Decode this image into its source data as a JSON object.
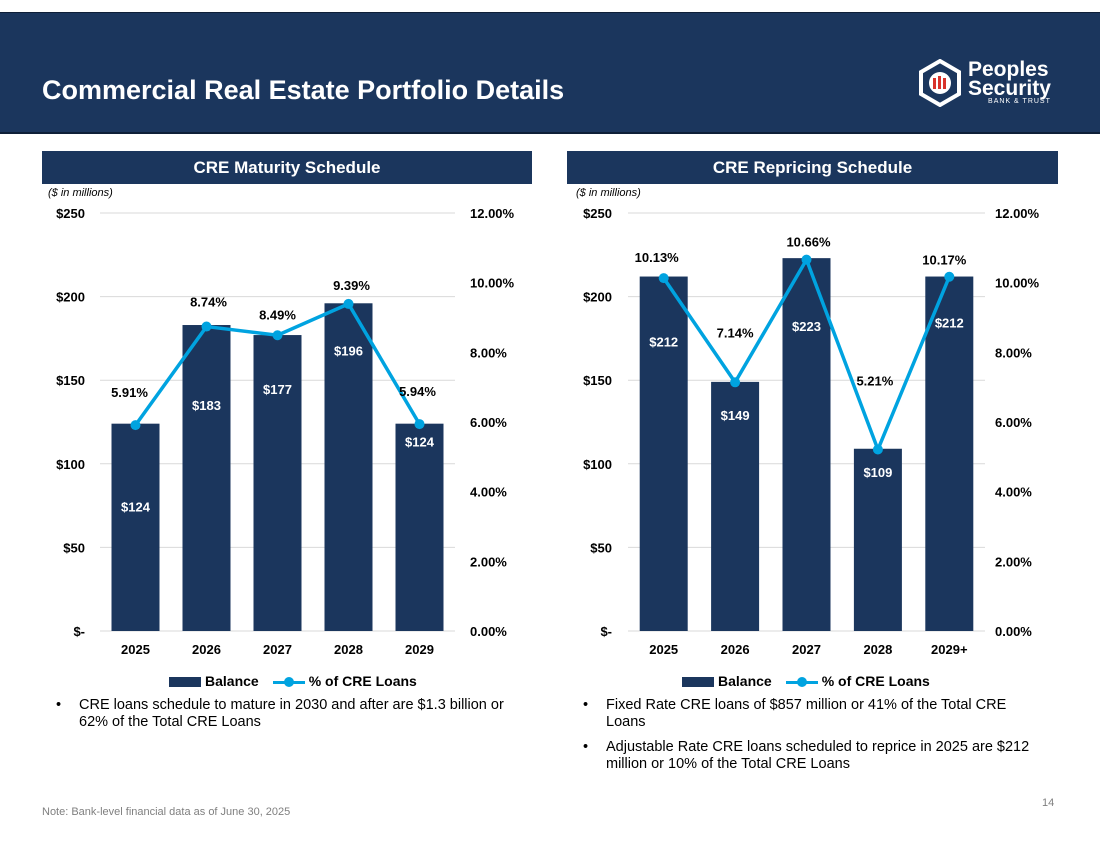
{
  "header": {
    "title": "Commercial Real Estate Portfolio Details",
    "logo": {
      "line1": "Peoples",
      "line2": "Security",
      "line3": "BANK & TRUST"
    }
  },
  "colors": {
    "navy": "#1b365d",
    "line": "#00a3e0"
  },
  "chart_data": [
    {
      "type": "bar",
      "title": "CRE Maturity Schedule",
      "unit_note": "($ in millions)",
      "categories": [
        "2025",
        "2026",
        "2027",
        "2028",
        "2029"
      ],
      "series": [
        {
          "name": "Balance",
          "axis": "left",
          "values": [
            124,
            183,
            177,
            196,
            124
          ],
          "labels": [
            "$124",
            "$183",
            "$177",
            "$196",
            "$124"
          ]
        },
        {
          "name": "% of CRE Loans",
          "type": "line",
          "axis": "right",
          "values": [
            5.91,
            8.74,
            8.49,
            9.39,
            5.94
          ],
          "labels": [
            "5.91%",
            "8.74%",
            "8.49%",
            "9.39%",
            "5.94%"
          ]
        }
      ],
      "ylim": [
        0,
        250
      ],
      "yticks": [
        "$-",
        "$50",
        "$100",
        "$150",
        "$200",
        "$250"
      ],
      "y2lim": [
        0,
        12
      ],
      "y2ticks": [
        "0.00%",
        "2.00%",
        "4.00%",
        "6.00%",
        "8.00%",
        "10.00%",
        "12.00%"
      ],
      "grid": true,
      "legend": "bottom"
    },
    {
      "type": "bar",
      "title": "CRE Repricing Schedule",
      "unit_note": "($ in millions)",
      "categories": [
        "2025",
        "2026",
        "2027",
        "2028",
        "2029+"
      ],
      "series": [
        {
          "name": "Balance",
          "axis": "left",
          "values": [
            212,
            149,
            223,
            109,
            212
          ],
          "labels": [
            "$212",
            "$149",
            "$223",
            "$109",
            "$212"
          ]
        },
        {
          "name": "% of CRE Loans",
          "type": "line",
          "axis": "right",
          "values": [
            10.13,
            7.14,
            10.66,
            5.21,
            10.17
          ],
          "labels": [
            "10.13%",
            "7.14%",
            "10.66%",
            "5.21%",
            "10.17%"
          ]
        }
      ],
      "ylim": [
        0,
        250
      ],
      "yticks": [
        "$-",
        "$50",
        "$100",
        "$150",
        "$200",
        "$250"
      ],
      "y2lim": [
        0,
        12
      ],
      "y2ticks": [
        "0.00%",
        "2.00%",
        "4.00%",
        "6.00%",
        "8.00%",
        "10.00%",
        "12.00%"
      ],
      "grid": true,
      "legend": "bottom"
    }
  ],
  "legend": {
    "balance": "Balance",
    "pct": "% of CRE Loans"
  },
  "bullets_left": [
    "CRE loans schedule to mature in 2030 and after are $1.3 billion or 62% of the Total CRE Loans"
  ],
  "bullets_right": [
    "Fixed Rate CRE loans of $857 million or 41% of the Total CRE Loans",
    "Adjustable Rate CRE loans scheduled to reprice in 2025 are $212 million or 10% of the Total CRE Loans"
  ],
  "footer": {
    "note": "Note: Bank-level financial data as of June 30, 2025",
    "page": "14"
  }
}
